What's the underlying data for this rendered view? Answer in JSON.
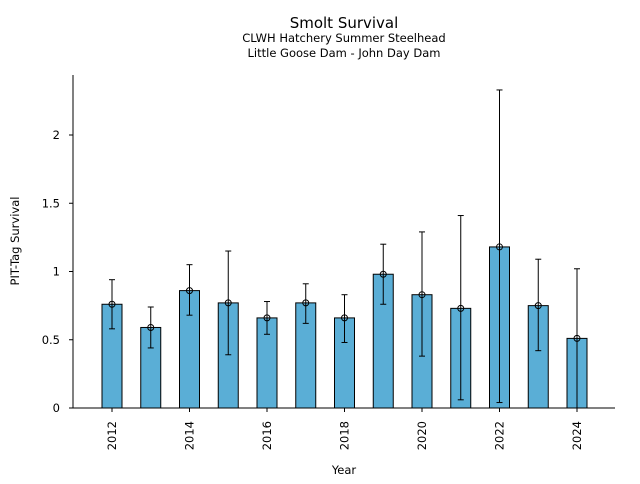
{
  "chart_data": {
    "type": "bar",
    "title": "Smolt Survival",
    "subtitle_lines": [
      "CLWH Hatchery Summer Steelhead",
      "Little Goose Dam - John Day Dam"
    ],
    "xlabel": "Year",
    "ylabel": "PIT-Tag Survival",
    "ylim": [
      0,
      2.4
    ],
    "yticks": [
      0,
      0.5,
      1,
      1.5,
      2
    ],
    "ytick_labels": [
      "0",
      "0.5",
      "1",
      "1.5",
      "2"
    ],
    "xtick_labels": [
      "2012",
      "2014",
      "2016",
      "2018",
      "2020",
      "2022",
      "2024"
    ],
    "categories": [
      "2012",
      "2013",
      "2014",
      "2015",
      "2016",
      "2017",
      "2018",
      "2019",
      "2020",
      "2021",
      "2022",
      "2023",
      "2024"
    ],
    "values": [
      0.76,
      0.59,
      0.86,
      0.77,
      0.66,
      0.77,
      0.66,
      0.98,
      0.83,
      0.73,
      1.18,
      0.75,
      0.51
    ],
    "error_lower": [
      0.58,
      0.44,
      0.68,
      0.39,
      0.54,
      0.62,
      0.48,
      0.76,
      0.38,
      0.06,
      0.04,
      0.42,
      0.0
    ],
    "error_upper": [
      0.94,
      0.74,
      1.05,
      1.15,
      0.78,
      0.91,
      0.83,
      1.2,
      1.29,
      1.41,
      2.33,
      1.09,
      1.02
    ],
    "bar_color": "#5aaed6",
    "edge_color": "#000000",
    "grid": false,
    "legend": "none"
  }
}
